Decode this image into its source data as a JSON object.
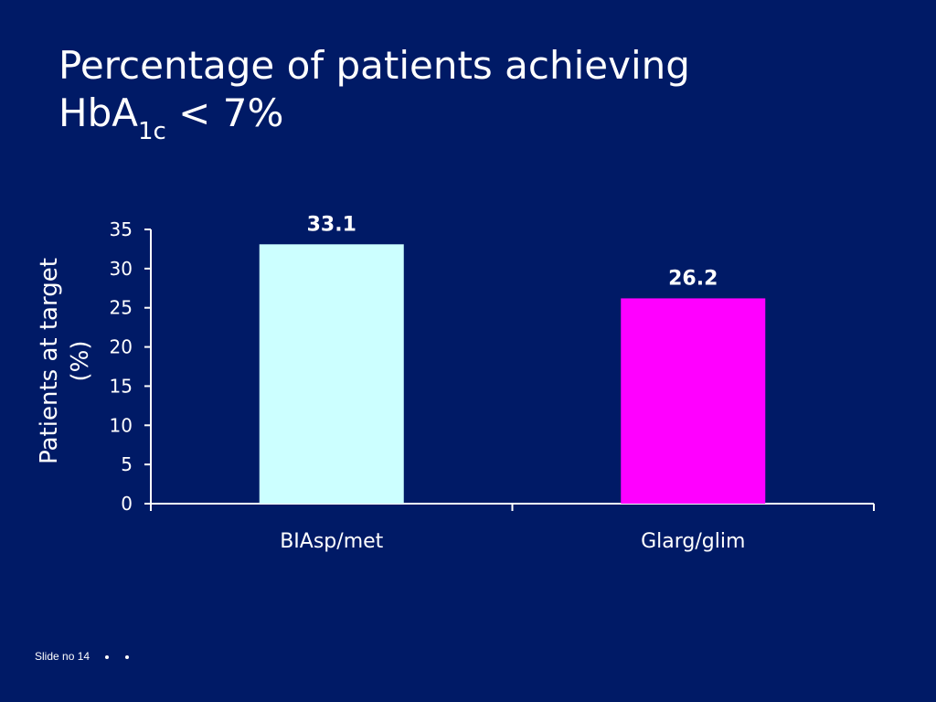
{
  "slide": {
    "title_line1": "Percentage of patients achieving",
    "title_line2_main": "HbA",
    "title_line2_sub": "1c",
    "title_line2_rest": " < 7%",
    "footer_label": "Slide no 14"
  },
  "colors": {
    "background": "#001a66",
    "axis": "#ffffff",
    "text": "#ffffff"
  },
  "chart_data": {
    "type": "bar",
    "categories": [
      "BIAsp/met",
      "Glarg/glim"
    ],
    "values": [
      33.1,
      26.2
    ],
    "value_labels": [
      "33.1",
      "26.2"
    ],
    "bar_colors": [
      "#ccffff",
      "#ff00ff"
    ],
    "ylabel_line1": "Patients at target",
    "ylabel_line2": "(%)",
    "ylim": [
      0,
      35
    ],
    "yticks": [
      0,
      5,
      10,
      15,
      20,
      25,
      30,
      35
    ],
    "grid": false,
    "legend": "none"
  }
}
